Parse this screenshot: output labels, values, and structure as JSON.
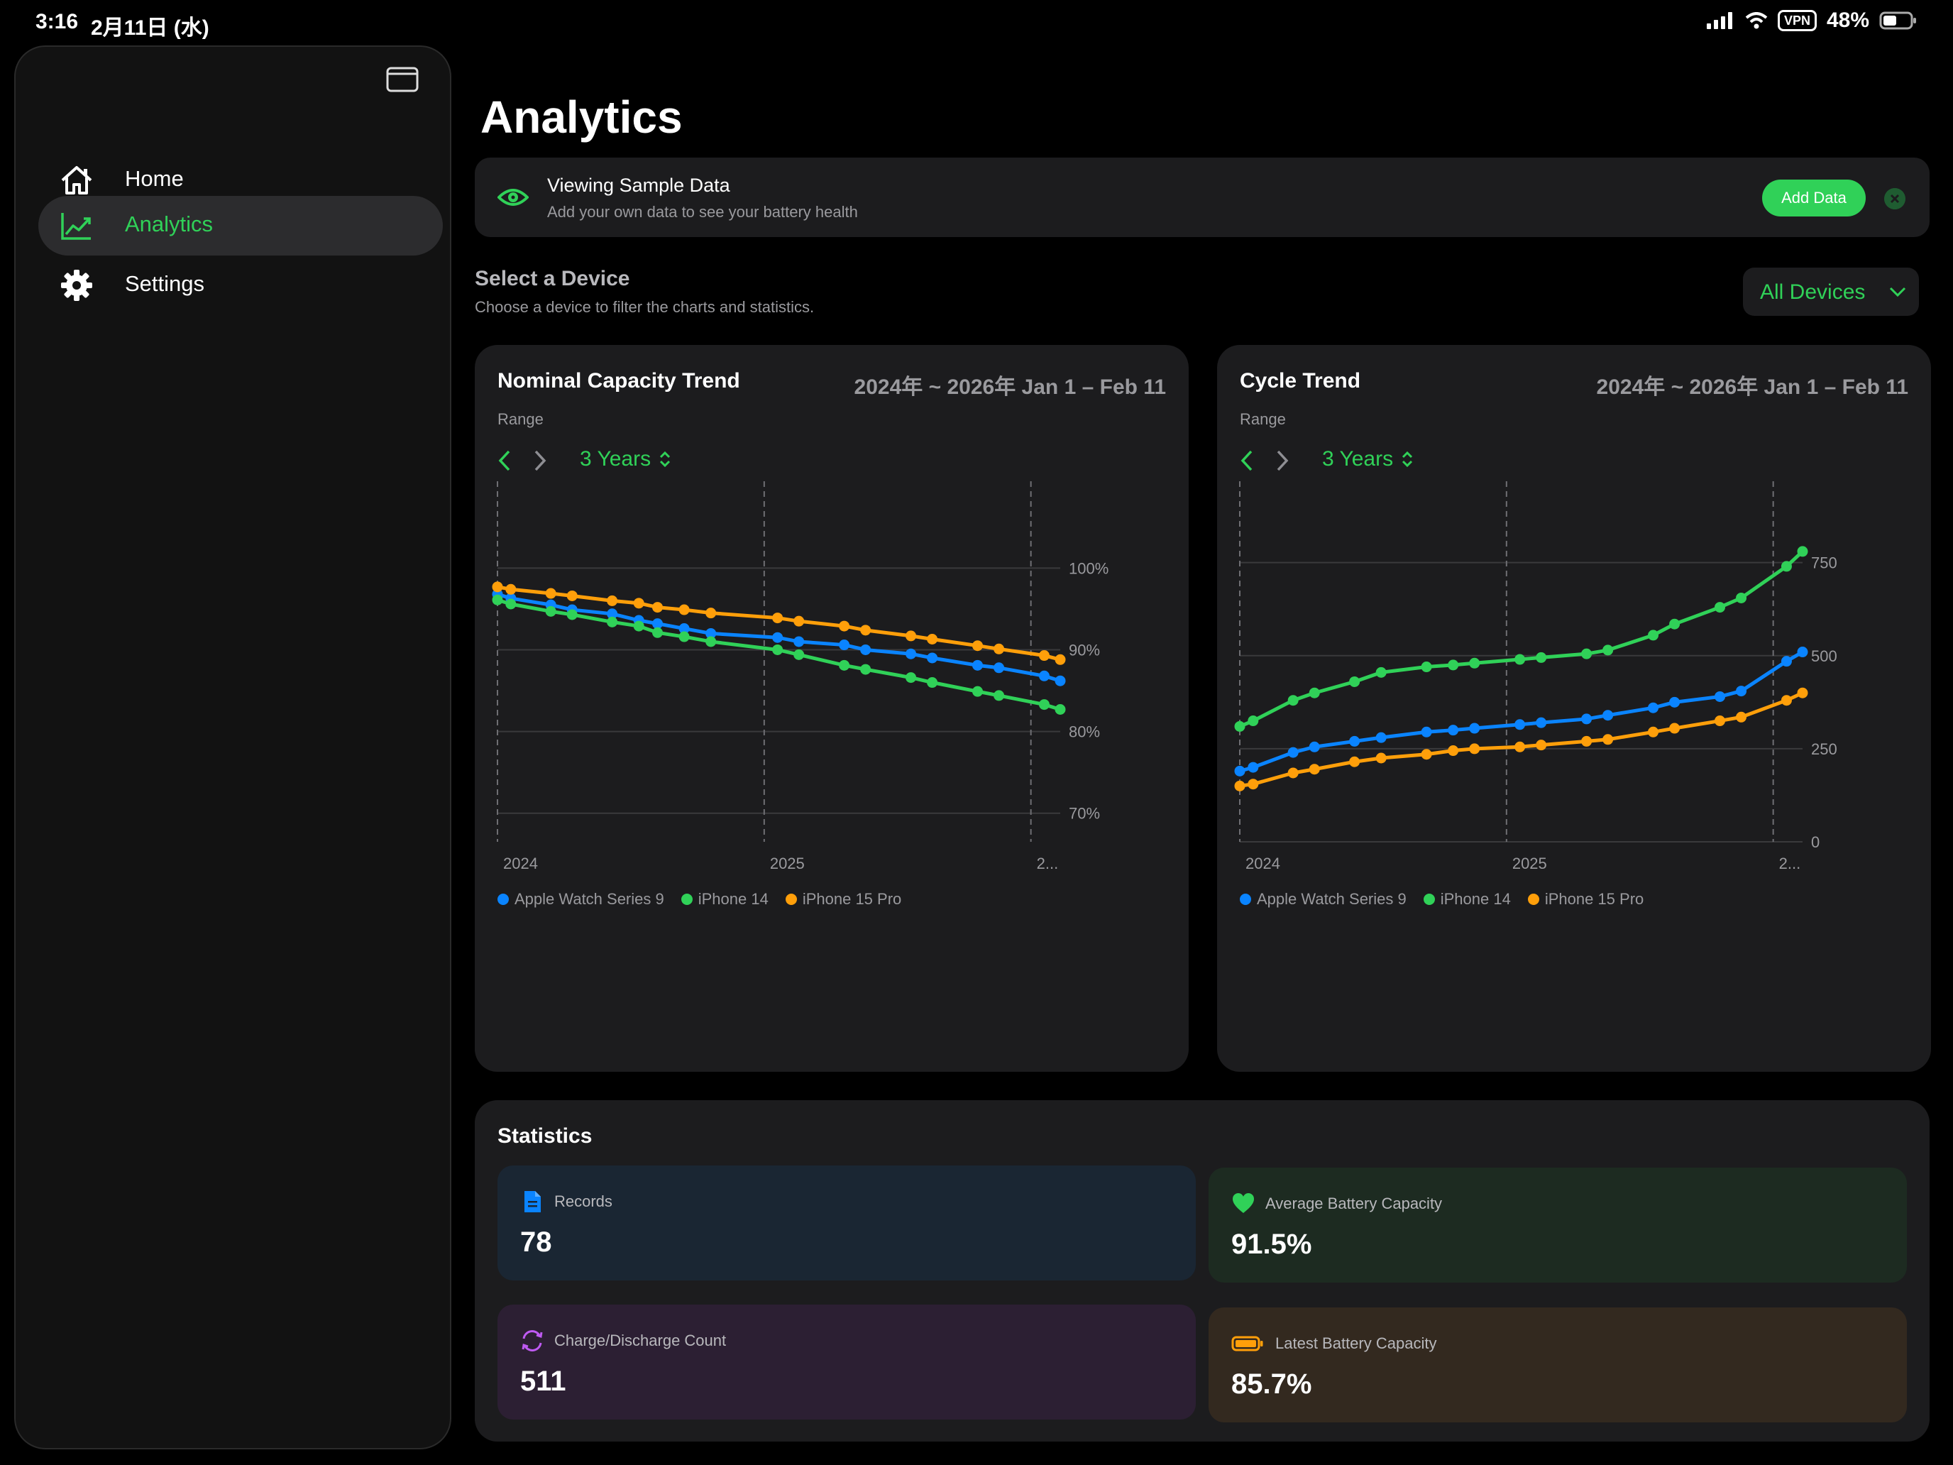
{
  "status": {
    "time": "3:16",
    "date": "2月11日 (水)",
    "vpn": "VPN",
    "battery": "48%"
  },
  "sidebar": {
    "items": [
      {
        "label": "Home",
        "icon": "house-icon"
      },
      {
        "label": "Analytics",
        "icon": "chart-line-icon"
      },
      {
        "label": "Settings",
        "icon": "gear-icon"
      }
    ],
    "active": "Analytics"
  },
  "page": {
    "title": "Analytics"
  },
  "banner": {
    "title": "Viewing Sample Data",
    "subtitle": "Add your own data to see your battery health",
    "button": "Add Data",
    "icon": "eye-icon"
  },
  "device": {
    "title": "Select a Device",
    "subtitle": "Choose a device to filter the charts and statistics.",
    "selected": "All Devices"
  },
  "colors": {
    "accent": "#30d158",
    "blue": "#0a84ff",
    "green": "#30d158",
    "orange": "#ff9f0a"
  },
  "capacity_card": {
    "title": "Nominal Capacity Trend",
    "range": "2024年 ~ 2026年   Jan 1 – Feb 11",
    "range_label": "Range",
    "period": "3 Years"
  },
  "cycle_card": {
    "title": "Cycle Trend",
    "range": "2024年 ~ 2026年   Jan 1 – Feb 11",
    "range_label": "Range",
    "period": "3 Years"
  },
  "chart_data": [
    {
      "type": "line",
      "title": "Nominal Capacity Trend",
      "x_ticks": [
        "2024",
        "2025",
        "2..."
      ],
      "x_domain": [
        2024.0,
        2026.11
      ],
      "y_ticks": [
        "70%",
        "80%",
        "90%",
        "100%"
      ],
      "ylim": [
        66.5,
        107.5
      ],
      "legend": "bottom",
      "series": [
        {
          "name": "Apple Watch Series 9",
          "color": "#0a84ff",
          "x": [
            2024.0,
            2024.05,
            2024.2,
            2024.28,
            2024.43,
            2024.53,
            2024.6,
            2024.7,
            2024.8,
            2025.05,
            2025.13,
            2025.3,
            2025.38,
            2025.55,
            2025.63,
            2025.8,
            2025.88,
            2026.05,
            2026.11
          ],
          "y": [
            96.8,
            96.3,
            95.5,
            94.9,
            94.4,
            93.6,
            93.2,
            92.6,
            92.0,
            91.5,
            91.0,
            90.6,
            90.0,
            89.5,
            89.0,
            88.1,
            87.8,
            86.8,
            86.2
          ]
        },
        {
          "name": "iPhone 14",
          "color": "#30d158",
          "x": [
            2024.0,
            2024.05,
            2024.2,
            2024.28,
            2024.43,
            2024.53,
            2024.6,
            2024.7,
            2024.8,
            2025.05,
            2025.13,
            2025.3,
            2025.38,
            2025.55,
            2025.63,
            2025.8,
            2025.88,
            2026.05,
            2026.11
          ],
          "y": [
            96.1,
            95.6,
            94.7,
            94.3,
            93.4,
            92.9,
            92.1,
            91.6,
            91.0,
            90.0,
            89.4,
            88.1,
            87.6,
            86.6,
            86.0,
            84.9,
            84.4,
            83.3,
            82.7
          ]
        },
        {
          "name": "iPhone 15 Pro",
          "color": "#ff9f0a",
          "x": [
            2024.0,
            2024.05,
            2024.2,
            2024.28,
            2024.43,
            2024.53,
            2024.6,
            2024.7,
            2024.8,
            2025.05,
            2025.13,
            2025.3,
            2025.38,
            2025.55,
            2025.63,
            2025.8,
            2025.88,
            2026.05,
            2026.11
          ],
          "y": [
            97.7,
            97.4,
            96.9,
            96.6,
            96.0,
            95.7,
            95.2,
            94.9,
            94.5,
            93.9,
            93.5,
            92.9,
            92.4,
            91.7,
            91.3,
            90.5,
            90.1,
            89.3,
            88.8
          ]
        }
      ]
    },
    {
      "type": "line",
      "title": "Cycle Trend",
      "x_ticks": [
        "2024",
        "2025",
        "2..."
      ],
      "x_domain": [
        2024.0,
        2026.11
      ],
      "y_ticks": [
        "0",
        "250",
        "500",
        "750"
      ],
      "ylim": [
        0,
        900
      ],
      "legend": "bottom",
      "series": [
        {
          "name": "Apple Watch Series 9",
          "color": "#0a84ff",
          "x": [
            2024.0,
            2024.05,
            2024.2,
            2024.28,
            2024.43,
            2024.53,
            2024.7,
            2024.8,
            2024.88,
            2025.05,
            2025.13,
            2025.3,
            2025.38,
            2025.55,
            2025.63,
            2025.8,
            2025.88,
            2026.05,
            2026.11
          ],
          "y": [
            190,
            200,
            240,
            255,
            270,
            280,
            295,
            300,
            305,
            315,
            320,
            330,
            340,
            360,
            375,
            390,
            405,
            485,
            510
          ]
        },
        {
          "name": "iPhone 14",
          "color": "#30d158",
          "x": [
            2024.0,
            2024.05,
            2024.2,
            2024.28,
            2024.43,
            2024.53,
            2024.7,
            2024.8,
            2024.88,
            2025.05,
            2025.13,
            2025.3,
            2025.38,
            2025.55,
            2025.63,
            2025.8,
            2025.88,
            2026.05,
            2026.11
          ],
          "y": [
            310,
            325,
            380,
            400,
            430,
            455,
            470,
            475,
            480,
            490,
            495,
            505,
            515,
            555,
            585,
            630,
            655,
            740,
            780
          ]
        },
        {
          "name": "iPhone 15 Pro",
          "color": "#ff9f0a",
          "x": [
            2024.0,
            2024.05,
            2024.2,
            2024.28,
            2024.43,
            2024.53,
            2024.7,
            2024.8,
            2024.88,
            2025.05,
            2025.13,
            2025.3,
            2025.38,
            2025.55,
            2025.63,
            2025.8,
            2025.88,
            2026.05,
            2026.11
          ],
          "y": [
            150,
            155,
            185,
            195,
            215,
            225,
            235,
            245,
            250,
            255,
            260,
            270,
            275,
            295,
            305,
            325,
            335,
            380,
            400
          ]
        }
      ]
    }
  ],
  "statistics": {
    "title": "Statistics",
    "cards": [
      {
        "label": "Records",
        "value": "78",
        "icon": "document-icon",
        "color": "#0a84ff",
        "bg": "#1a2633"
      },
      {
        "label": "Average Battery Capacity",
        "value": "91.5%",
        "icon": "heart-icon",
        "color": "#30d158",
        "bg": "#1d2b21"
      },
      {
        "label": "Charge/Discharge Count",
        "value": "511",
        "icon": "cycle-icon",
        "color": "#bf5af2",
        "bg": "#2c1f33"
      },
      {
        "label": "Latest Battery Capacity",
        "value": "85.7%",
        "icon": "battery-icon",
        "color": "#ff9f0a",
        "bg": "#33291f"
      }
    ]
  }
}
